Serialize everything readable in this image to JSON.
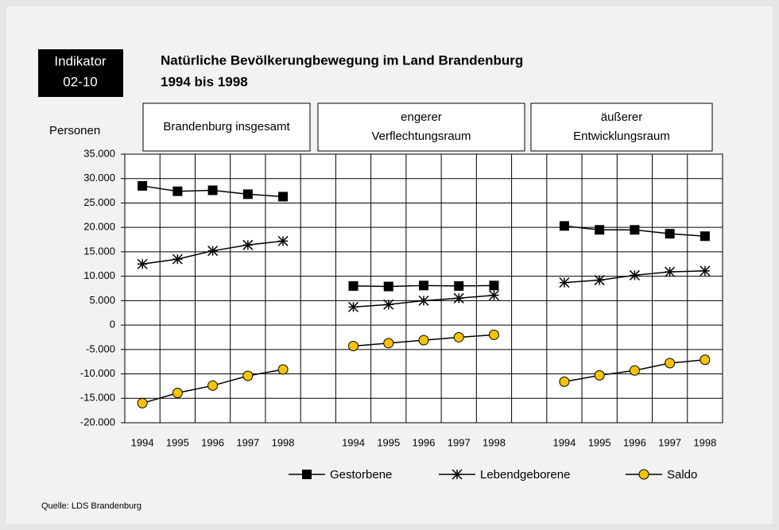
{
  "chart_data": {
    "type": "line",
    "indicator": "Indikator",
    "indicator_code": "02-10",
    "title": "Natürliche Bevölkerungbewegung im Land Brandenburg",
    "subtitle": "1994 bis 1998",
    "y_label": "Personen",
    "source": "Quelle: LDS Brandenburg",
    "panels": [
      {
        "label": [
          "Brandenburg insgesamt"
        ]
      },
      {
        "label": [
          "engerer",
          "Verflechtungsraum"
        ]
      },
      {
        "label": [
          "äußerer",
          "Entwicklungsraum"
        ]
      }
    ],
    "categories": [
      "1994",
      "1995",
      "1996",
      "1997",
      "1998",
      null,
      "1994",
      "1995",
      "1996",
      "1997",
      "1998",
      null,
      "1994",
      "1995",
      "1996",
      "1997",
      "1998"
    ],
    "series": [
      {
        "name": "Gestorbene",
        "color": "#000000",
        "marker": "square",
        "values": [
          28500,
          27400,
          27600,
          26800,
          26300,
          null,
          8000,
          7900,
          8100,
          8000,
          8100,
          null,
          20300,
          19500,
          19500,
          18700,
          18200
        ]
      },
      {
        "name": "Lebendgeborene",
        "color": "#000000",
        "marker": "star",
        "values": [
          12500,
          13500,
          15200,
          16400,
          17200,
          null,
          3700,
          4200,
          5000,
          5500,
          6100,
          null,
          8700,
          9200,
          10200,
          10900,
          11100
        ]
      },
      {
        "name": "Saldo",
        "color": "#f5c400",
        "marker": "circle",
        "values": [
          -16000,
          -13900,
          -12400,
          -10400,
          -9100,
          null,
          -4300,
          -3700,
          -3100,
          -2500,
          -2000,
          null,
          -11600,
          -10300,
          -9300,
          -7800,
          -7100
        ]
      }
    ],
    "ylim": [
      -20000,
      35000
    ],
    "yticks": [
      {
        "value": -20000,
        "label": "-20.000"
      },
      {
        "value": -15000,
        "label": "-15.000"
      },
      {
        "value": -10000,
        "label": "-10.000"
      },
      {
        "value": -5000,
        "label": "-5.000"
      },
      0,
      {
        "value": 5000,
        "label": "5.000"
      },
      {
        "value": 10000,
        "label": "10.000"
      },
      {
        "value": 15000,
        "label": "15.000"
      },
      {
        "value": 20000,
        "label": "20.000"
      },
      {
        "value": 25000,
        "label": "25.000"
      },
      {
        "value": 30000,
        "label": "30.000"
      },
      {
        "value": 35000,
        "label": "35.000"
      }
    ],
    "grid": true,
    "legend": "bottom"
  }
}
